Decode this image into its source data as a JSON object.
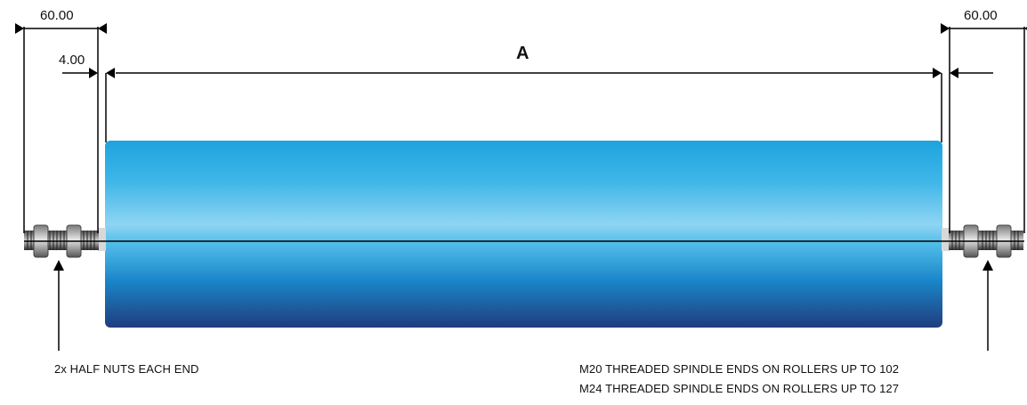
{
  "dimensions": {
    "left_shaft": "60.00",
    "left_gap": "4.00",
    "right_shaft": "60.00",
    "face_length": "A"
  },
  "notes": {
    "half_nuts": "2x HALF NUTS EACH END",
    "spindle_m20": "M20 THREADED SPINDLE ENDS ON ROLLERS UP TO 102",
    "spindle_m24": "M24 THREADED SPINDLE ENDS ON ROLLERS UP TO 127"
  },
  "colors": {
    "roller_top": "#1ea3de",
    "roller_light": "#8fd5f4",
    "roller_bottom": "#1f3d7e",
    "line": "#000000"
  }
}
